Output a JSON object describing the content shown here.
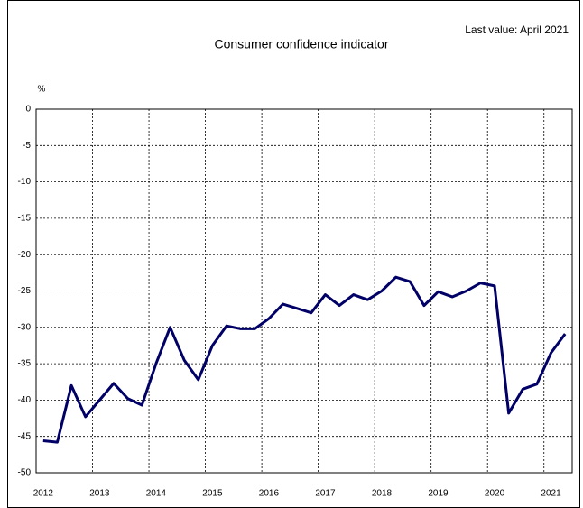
{
  "chart_data": {
    "type": "line",
    "title": "Consumer confidence indicator",
    "annotation": "Last value: April 2021",
    "y_unit": "%",
    "categories": [
      "2012",
      null,
      null,
      null,
      "2013",
      null,
      null,
      null,
      "2014",
      null,
      null,
      null,
      "2015",
      null,
      null,
      null,
      "2016",
      null,
      null,
      null,
      "2017",
      null,
      null,
      null,
      "2018",
      null,
      null,
      null,
      "2019",
      null,
      null,
      null,
      "2020",
      null,
      null,
      null,
      "2021",
      null
    ],
    "series": [
      {
        "name": "Consumer confidence indicator",
        "color": "#000066",
        "values": [
          -45.6,
          -45.8,
          -38,
          -42.3,
          -40,
          -37.7,
          -39.8,
          -40.7,
          -35,
          -30,
          -34.5,
          -37.2,
          -32.5,
          -29.8,
          -30.2,
          -30.2,
          -28.8,
          -26.8,
          -27.4,
          -28,
          -25.5,
          -27,
          -25.5,
          -26.2,
          -25,
          -23.1,
          -23.7,
          -27,
          -25.1,
          -25.8,
          -25,
          -23.9,
          -24.3,
          -41.8,
          -38.5,
          -37.8,
          -33.5,
          -30.9
        ]
      }
    ],
    "ylim": [
      -50,
      0
    ],
    "yticks": [
      0,
      -5,
      -10,
      -15,
      -20,
      -25,
      -30,
      -35,
      -40,
      -45,
      -50
    ],
    "grid": true
  }
}
